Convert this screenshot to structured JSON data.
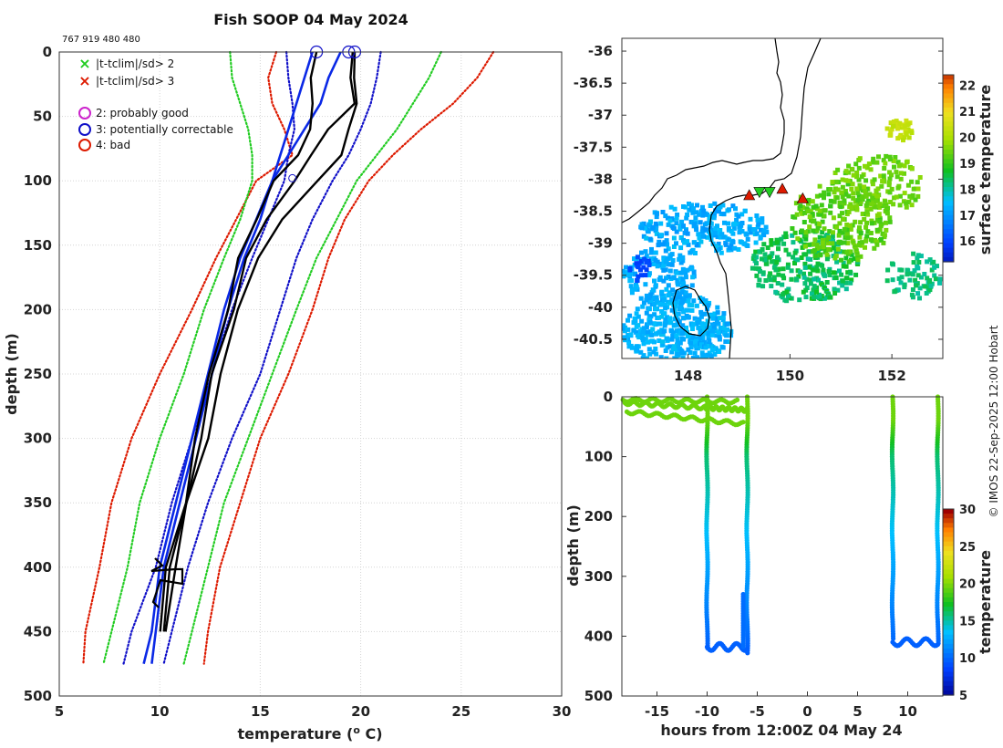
{
  "title": "Fish SOOP 04 May 2024",
  "id_label": "767 919 480 480",
  "credit": "© IMOS 22-Sep-2025 12:00 Hobart",
  "colors": {
    "clim_red": "#dd1a00",
    "clim_green": "#22cc22",
    "clim_blue": "#1010c8",
    "profile": "#000000",
    "mean_line": "#0a28e6",
    "legend_magenta": "#cc22cc"
  },
  "profile_panel": {
    "xlabel": "temperature (",
    "xlabel_sup": "o",
    "xlabel_end": " C)",
    "ylabel": "depth (m)",
    "x_ticks": [
      "5",
      "10",
      "15",
      "20",
      "25",
      "30"
    ],
    "y_ticks": [
      "0",
      "50",
      "100",
      "150",
      "200",
      "250",
      "300",
      "350",
      "400",
      "450",
      "500"
    ],
    "legend": [
      {
        "symbol": "×",
        "color": "#22cc22",
        "text": "|t-tclim|/sd> 2"
      },
      {
        "symbol": "×",
        "color": "#dd1a00",
        "text": "|t-tclim|/sd> 3"
      },
      {
        "symbol": "○",
        "color": "#cc22cc",
        "text": "2: probably good"
      },
      {
        "symbol": "○",
        "color": "#1010c8",
        "text": "3: potentially correctable"
      },
      {
        "symbol": "○",
        "color": "#dd1a00",
        "text": "4: bad"
      }
    ]
  },
  "map_panel": {
    "lat_ticks": [
      "-36",
      "-36.5",
      "-37",
      "-37.5",
      "-38",
      "-38.5",
      "-39",
      "-39.5",
      "-40",
      "-40.5"
    ],
    "lon_ticks": [
      "148",
      "150",
      "152"
    ],
    "colorbar_label": "surface temperature",
    "colorbar_ticks": [
      "22",
      "21",
      "20",
      "19",
      "18",
      "17",
      "16"
    ]
  },
  "time_panel": {
    "xlabel": "hours from 12:00Z 04 May 24",
    "ylabel": "depth (m)",
    "x_ticks": [
      "-15",
      "-10",
      "-5",
      "0",
      "5",
      "10"
    ],
    "y_ticks": [
      "0",
      "100",
      "200",
      "300",
      "400",
      "500"
    ],
    "colorbar_label": "temperature",
    "colorbar_ticks": [
      "30",
      "25",
      "20",
      "15",
      "10",
      "5"
    ]
  },
  "chart_data": [
    {
      "type": "line",
      "title": "Fish SOOP 04 May 2024",
      "xlabel": "temperature (o C)",
      "ylabel": "depth (m)",
      "xlim": [
        5,
        30
      ],
      "ylim": [
        500,
        0
      ],
      "depth": [
        0,
        20,
        40,
        60,
        80,
        100,
        130,
        160,
        200,
        250,
        300,
        350,
        400,
        450,
        475
      ],
      "series": [
        {
          "name": "clim -3sd",
          "style": "dotted",
          "color": "#dd1a00",
          "values": [
            15.8,
            15.4,
            15.6,
            16.2,
            16.6,
            14.8,
            13.8,
            12.8,
            11.6,
            10.0,
            8.6,
            7.6,
            7.0,
            6.3,
            6.2
          ]
        },
        {
          "name": "clim -2sd",
          "style": "dotted",
          "color": "#22cc22",
          "values": [
            13.5,
            13.6,
            14.0,
            14.4,
            14.6,
            14.6,
            14.0,
            13.2,
            12.2,
            11.2,
            10.0,
            9.0,
            8.4,
            7.6,
            7.2
          ]
        },
        {
          "name": "clim -1sd",
          "style": "dotted",
          "color": "#1010c8",
          "values": [
            16.3,
            16.4,
            16.6,
            16.7,
            16.4,
            16.2,
            15.4,
            14.6,
            13.6,
            12.6,
            11.6,
            10.6,
            9.8,
            8.6,
            8.2
          ]
        },
        {
          "name": "clim +1sd",
          "style": "dotted",
          "color": "#1010c8",
          "values": [
            21.0,
            20.8,
            20.5,
            20.0,
            19.4,
            18.6,
            17.6,
            16.8,
            16.0,
            15.0,
            13.6,
            12.4,
            11.4,
            10.6,
            10.2
          ]
        },
        {
          "name": "clim +2sd",
          "style": "dotted",
          "color": "#22cc22",
          "values": [
            24.0,
            23.4,
            22.6,
            21.8,
            20.8,
            19.8,
            18.8,
            17.8,
            16.8,
            15.6,
            14.4,
            13.2,
            12.4,
            11.6,
            11.2
          ]
        },
        {
          "name": "clim +3sd",
          "style": "dotted",
          "color": "#dd1a00",
          "values": [
            26.6,
            25.8,
            24.6,
            23.0,
            21.6,
            20.4,
            19.2,
            18.4,
            17.6,
            16.4,
            15.0,
            14.0,
            13.0,
            12.4,
            12.2
          ]
        },
        {
          "name": "mean-line-1",
          "style": "solid",
          "color": "#0a28e6",
          "values": [
            17.6,
            17.2,
            16.8,
            16.4,
            16.0,
            15.6,
            14.8,
            14.0,
            13.2,
            12.4,
            11.6,
            10.8,
            10.0,
            9.6,
            9.2
          ]
        },
        {
          "name": "mean-line-2",
          "style": "solid",
          "color": "#0a28e6",
          "values": [
            19.0,
            18.4,
            18.0,
            17.2,
            16.4,
            15.6,
            15.0,
            14.2,
            13.4,
            12.6,
            11.8,
            11.0,
            10.2,
            9.8,
            9.6
          ]
        },
        {
          "name": "profile-1",
          "style": "solid",
          "color": "#000000",
          "values": [
            17.8,
            17.6,
            17.6,
            17.4,
            17.0,
            15.6,
            14.8,
            14.0,
            13.3,
            12.5,
            11.8,
            11.2,
            10.4,
            10.0,
            null
          ]
        },
        {
          "name": "profile-2",
          "style": "solid",
          "color": "#000000",
          "values": [
            19.6,
            19.6,
            19.6,
            18.4,
            17.6,
            16.6,
            15.4,
            14.3,
            13.6,
            12.7,
            12.0,
            11.3,
            10.6,
            10.1,
            null
          ]
        },
        {
          "name": "profile-3",
          "style": "solid",
          "color": "#000000",
          "values": [
            19.7,
            19.7,
            19.7,
            19.5,
            19.0,
            17.8,
            16.2,
            14.8,
            13.9,
            13.1,
            12.3,
            11.4,
            10.8,
            10.2,
            null
          ]
        }
      ]
    },
    {
      "type": "heatmap",
      "title": "",
      "xlabel": "",
      "ylabel": "",
      "xlim": [
        146.7,
        153.0
      ],
      "ylim": [
        -40.8,
        -35.8
      ],
      "colorbar": {
        "label": "surface temperature",
        "range": [
          15.2,
          22.4
        ]
      },
      "stations": [
        {
          "lon": 149.2,
          "lat": -38.25,
          "marker": "triangle-up",
          "color": "#dd1a00"
        },
        {
          "lon": 149.4,
          "lat": -38.2,
          "marker": "triangle-down",
          "color": "#22cc22"
        },
        {
          "lon": 149.6,
          "lat": -38.2,
          "marker": "triangle-down",
          "color": "#22cc22"
        },
        {
          "lon": 149.85,
          "lat": -38.15,
          "marker": "triangle-up",
          "color": "#dd1a00"
        },
        {
          "lon": 150.25,
          "lat": -38.3,
          "marker": "triangle-up",
          "color": "#dd1a00"
        }
      ]
    },
    {
      "type": "scatter",
      "title": "",
      "xlabel": "hours from 12:00Z 04 May 24",
      "ylabel": "depth (m)",
      "xlim": [
        -18.5,
        13.5
      ],
      "ylim": [
        500,
        0
      ],
      "colorbar": {
        "label": "temperature",
        "range": [
          5,
          30
        ]
      },
      "casts": [
        {
          "hour": -10.0,
          "max_depth": 420
        },
        {
          "hour": -6.0,
          "max_depth": 430
        },
        {
          "hour": 8.5,
          "max_depth": 405
        },
        {
          "hour": 13.0,
          "max_depth": 415
        }
      ]
    }
  ]
}
